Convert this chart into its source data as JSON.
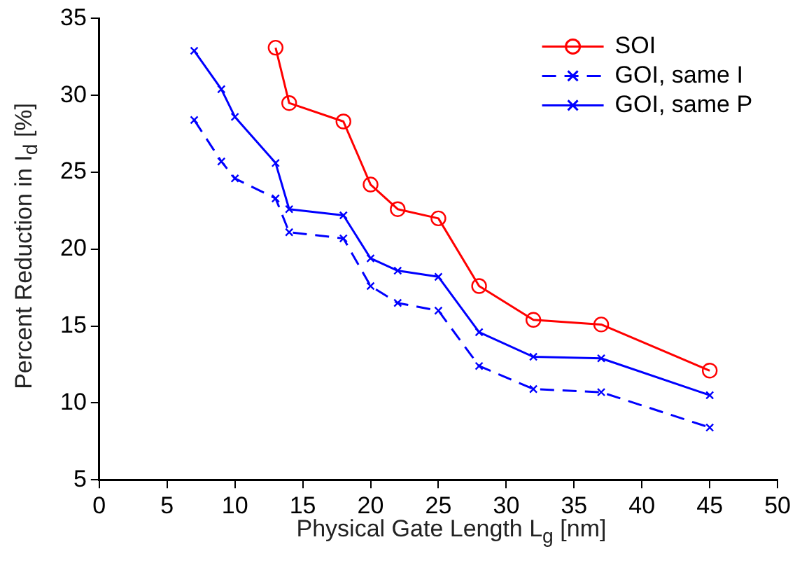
{
  "chart_data": {
    "type": "line",
    "xlabel": "Physical Gate Length L$_{g}$ [nm]",
    "ylabel": "Percent Reduction in I$_{d}$ [%]",
    "xlim": [
      0,
      50
    ],
    "xticks": [
      0,
      5,
      10,
      15,
      20,
      25,
      30,
      35,
      40,
      45,
      50
    ],
    "ylim": [
      5,
      35
    ],
    "yticks": [
      5,
      10,
      15,
      20,
      25,
      30,
      35
    ],
    "grid": false,
    "legend": "top right",
    "series": [
      {
        "name": "SOI",
        "color": "#ff0000",
        "marker": "circle",
        "line_style": "solid",
        "x": [
          13,
          14,
          18,
          20,
          22,
          25,
          28,
          32,
          37,
          45
        ],
        "values": [
          33.1,
          29.5,
          28.3,
          24.2,
          22.6,
          22.0,
          17.6,
          15.4,
          15.1,
          12.1
        ]
      },
      {
        "name": "GOI, same I",
        "color": "#0000ff",
        "marker": "cross",
        "line_style": "dashed",
        "x": [
          7,
          9,
          10,
          13,
          14,
          18,
          20,
          22,
          25,
          28,
          32,
          37,
          45
        ],
        "values": [
          28.4,
          25.7,
          24.6,
          23.3,
          21.1,
          20.7,
          17.6,
          16.5,
          16.0,
          12.4,
          10.9,
          10.7,
          8.4
        ]
      },
      {
        "name": "GOI, same P",
        "color": "#0000ff",
        "marker": "cross",
        "line_style": "solid",
        "x": [
          7,
          9,
          10,
          13,
          14,
          18,
          20,
          22,
          25,
          28,
          32,
          37,
          45
        ],
        "values": [
          32.9,
          30.4,
          28.6,
          25.6,
          22.6,
          22.2,
          19.4,
          18.6,
          18.2,
          14.6,
          13.0,
          12.9,
          10.5
        ]
      }
    ]
  }
}
